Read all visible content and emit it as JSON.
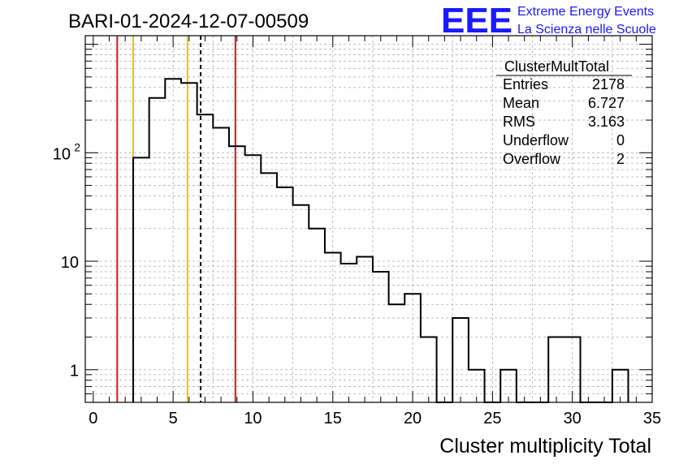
{
  "header": {
    "run_title": "BARI-01-2024-12-07-00509",
    "logo_text": "EEE",
    "logo_line1": "Extreme Energy Events",
    "logo_line2": "La Scienza nelle Scuole"
  },
  "stats_box": {
    "name": "ClusterMultTotal",
    "rows": [
      {
        "label": "Entries",
        "value": "2178"
      },
      {
        "label": "Mean",
        "value": "6.727"
      },
      {
        "label": "RMS",
        "value": "3.163"
      },
      {
        "label": "Underflow",
        "value": "0"
      },
      {
        "label": "Overflow",
        "value": "2"
      }
    ]
  },
  "colors": {
    "histogram": "#000000",
    "red_lines": "#e01010",
    "yellow_lines": "#f0c000",
    "mean_line": "#000000",
    "grid": "#b0b0b0",
    "logo": "#1a1aff"
  },
  "chart_data": {
    "type": "histogram",
    "title": "BARI-01-2024-12-07-00509",
    "xlabel": "Cluster multiplicity Total",
    "ylabel": "",
    "xlim": [
      -0.5,
      35
    ],
    "ylim": [
      0.5,
      1200
    ],
    "yscale": "log",
    "grid": true,
    "x_ticks": [
      0,
      5,
      10,
      15,
      20,
      25,
      30,
      35
    ],
    "x_tick_labels": [
      "0",
      "5",
      "10",
      "15",
      "20",
      "25",
      "30",
      "35"
    ],
    "y_ticks": [
      1,
      10,
      100
    ],
    "y_tick_labels": [
      "1",
      "10",
      "10²"
    ],
    "bin_edges": [
      2.5,
      3.5,
      4.5,
      5.5,
      6.5,
      7.5,
      8.5,
      9.5,
      10.5,
      11.5,
      12.5,
      13.5,
      14.5,
      15.5,
      16.5,
      17.5,
      18.5,
      19.5,
      20.5,
      21.5,
      22.5,
      23.5,
      24.5,
      25.5,
      26.5,
      27.5,
      28.5,
      29.5,
      30.5,
      31.5,
      32.5,
      33.5
    ],
    "counts": [
      90,
      320,
      480,
      440,
      225,
      170,
      115,
      95,
      65,
      48,
      33,
      20,
      12,
      9.5,
      11,
      8,
      4,
      5,
      2,
      0,
      3,
      1,
      0,
      1,
      0,
      0,
      2,
      2,
      0,
      0,
      1
    ],
    "vertical_lines": [
      {
        "x": 1.5,
        "style": "red"
      },
      {
        "x": 2.5,
        "style": "yellow"
      },
      {
        "x": 5.9,
        "style": "yellow"
      },
      {
        "x": 6.727,
        "style": "mean-dashed"
      },
      {
        "x": 8.9,
        "style": "red"
      }
    ]
  }
}
